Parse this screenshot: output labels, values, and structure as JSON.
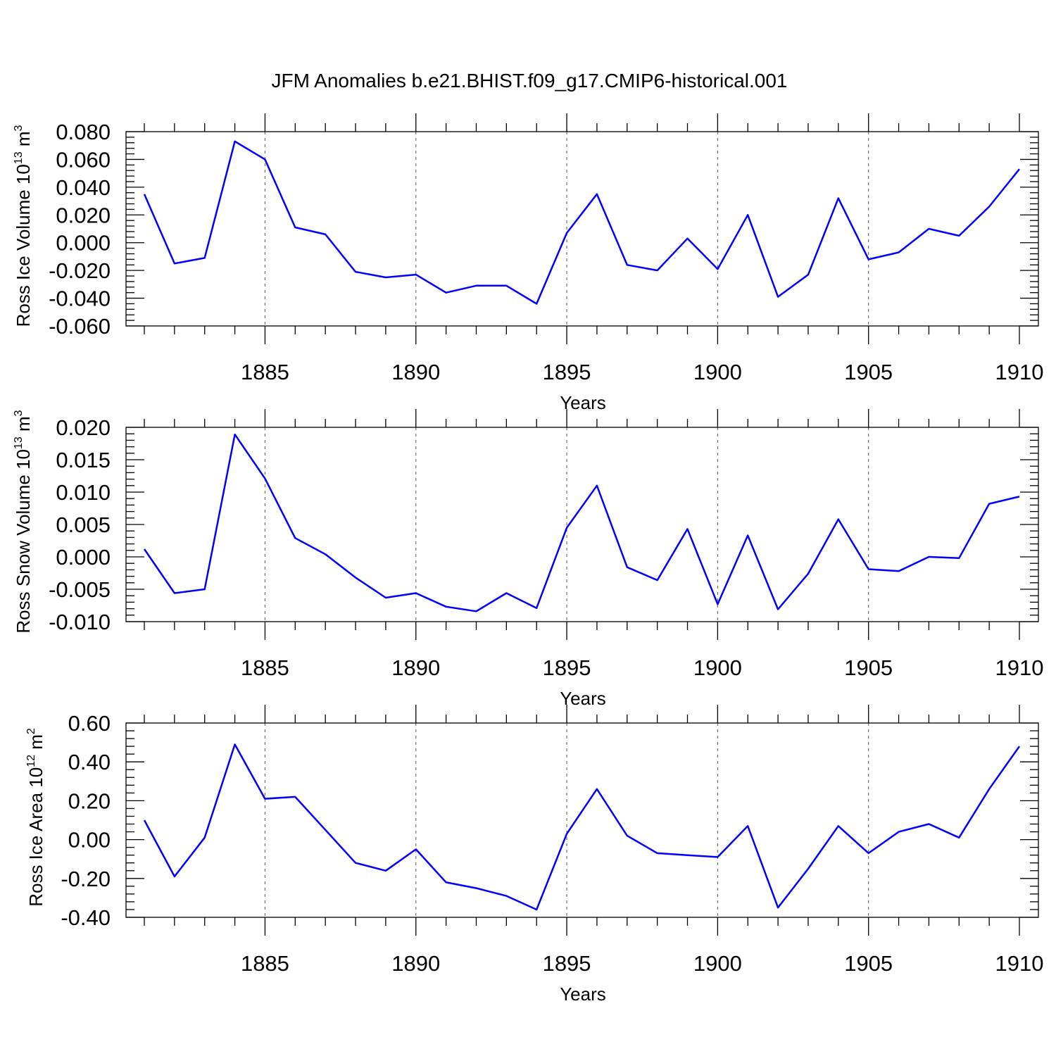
{
  "title": "JFM Anomalies b.e21.BHIST.f09_g17.CMIP6-historical.001",
  "chart_data": [
    {
      "type": "line",
      "ylabel": {
        "text": "Ross Ice Volume 10",
        "sup": "13",
        "unit": " m",
        "unit_sup": "3"
      },
      "xlabel": "Years",
      "xlim": [
        1881,
        1910
      ],
      "ylim": [
        -0.06,
        0.08
      ],
      "grid": "dashed vertical at major x ticks",
      "x_ticks": [
        1885,
        1890,
        1895,
        1900,
        1905,
        1910
      ],
      "x_tick_labels": [
        "1885",
        "1890",
        "1895",
        "1900",
        "1905",
        "1910"
      ],
      "y_ticks": [
        0.08,
        0.06,
        0.04,
        0.02,
        0.0,
        -0.02,
        -0.04,
        -0.06
      ],
      "y_tick_labels": [
        "0.080",
        "0.060",
        "0.040",
        "0.020",
        "0.000",
        "-0.020",
        "-0.040",
        "-0.060"
      ],
      "series": [
        {
          "color": "#0000ff",
          "x": [
            1881,
            1882,
            1883,
            1884,
            1885,
            1886,
            1887,
            1888,
            1889,
            1890,
            1891,
            1892,
            1893,
            1894,
            1895,
            1896,
            1897,
            1898,
            1899,
            1900,
            1901,
            1902,
            1903,
            1904,
            1905,
            1906,
            1907,
            1908,
            1909,
            1910
          ],
          "values": [
            0.035,
            -0.015,
            -0.011,
            0.073,
            0.06,
            0.011,
            0.006,
            -0.021,
            -0.025,
            -0.023,
            -0.036,
            -0.031,
            -0.031,
            -0.044,
            0.007,
            0.035,
            -0.016,
            -0.02,
            0.003,
            -0.019,
            0.02,
            -0.039,
            -0.023,
            0.032,
            -0.012,
            -0.007,
            0.01,
            0.005,
            0.026,
            0.053
          ]
        }
      ]
    },
    {
      "type": "line",
      "ylabel": {
        "text": "Ross Snow Volume 10",
        "sup": "13",
        "unit": " m",
        "unit_sup": "3"
      },
      "xlabel": "Years",
      "xlim": [
        1881,
        1910
      ],
      "ylim": [
        -0.01,
        0.02
      ],
      "grid": "dashed vertical at major x ticks",
      "x_ticks": [
        1885,
        1890,
        1895,
        1900,
        1905,
        1910
      ],
      "x_tick_labels": [
        "1885",
        "1890",
        "1895",
        "1900",
        "1905",
        "1910"
      ],
      "y_ticks": [
        0.02,
        0.015,
        0.01,
        0.005,
        0.0,
        -0.005,
        -0.01
      ],
      "y_tick_labels": [
        "0.020",
        "0.015",
        "0.010",
        "0.005",
        "0.000",
        "-0.005",
        "-0.010"
      ],
      "series": [
        {
          "color": "#0000ff",
          "x": [
            1881,
            1882,
            1883,
            1884,
            1885,
            1886,
            1887,
            1888,
            1889,
            1890,
            1891,
            1892,
            1893,
            1894,
            1895,
            1896,
            1897,
            1898,
            1899,
            1900,
            1901,
            1902,
            1903,
            1904,
            1905,
            1906,
            1907,
            1908,
            1909,
            1910
          ],
          "values": [
            0.0012,
            -0.0056,
            -0.005,
            0.0189,
            0.0121,
            0.0029,
            0.0004,
            -0.0032,
            -0.0063,
            -0.0056,
            -0.0077,
            -0.0084,
            -0.0056,
            -0.0079,
            0.0045,
            0.011,
            -0.0016,
            -0.0036,
            0.0043,
            -0.0073,
            0.0033,
            -0.0081,
            -0.0026,
            0.0058,
            -0.0019,
            -0.0022,
            0.0,
            -0.0002,
            0.0082,
            0.0093
          ]
        }
      ]
    },
    {
      "type": "line",
      "ylabel": {
        "text": "Ross Ice Area 10",
        "sup": "12",
        "unit": " m",
        "unit_sup": "2"
      },
      "xlabel": "Years",
      "xlim": [
        1881,
        1910
      ],
      "ylim": [
        -0.4,
        0.6
      ],
      "grid": "dashed vertical at major x ticks",
      "x_ticks": [
        1885,
        1890,
        1895,
        1900,
        1905,
        1910
      ],
      "x_tick_labels": [
        "1885",
        "1890",
        "1895",
        "1900",
        "1905",
        "1910"
      ],
      "y_ticks": [
        0.6,
        0.4,
        0.2,
        0.0,
        -0.2,
        -0.4
      ],
      "y_tick_labels": [
        "0.60",
        "0.40",
        "0.20",
        "0.00",
        "-0.20",
        "-0.40"
      ],
      "series": [
        {
          "color": "#0000ff",
          "x": [
            1881,
            1882,
            1883,
            1884,
            1885,
            1886,
            1887,
            1888,
            1889,
            1890,
            1891,
            1892,
            1893,
            1894,
            1895,
            1896,
            1897,
            1898,
            1899,
            1900,
            1901,
            1902,
            1903,
            1904,
            1905,
            1906,
            1907,
            1908,
            1909,
            1910
          ],
          "values": [
            0.1,
            -0.19,
            0.01,
            0.49,
            0.21,
            0.22,
            0.05,
            -0.12,
            -0.16,
            -0.05,
            -0.22,
            -0.25,
            -0.29,
            -0.36,
            0.03,
            0.26,
            0.02,
            -0.07,
            -0.08,
            -0.09,
            0.07,
            -0.35,
            -0.15,
            0.07,
            -0.07,
            0.04,
            0.08,
            0.01,
            0.26,
            0.48
          ]
        }
      ]
    }
  ]
}
